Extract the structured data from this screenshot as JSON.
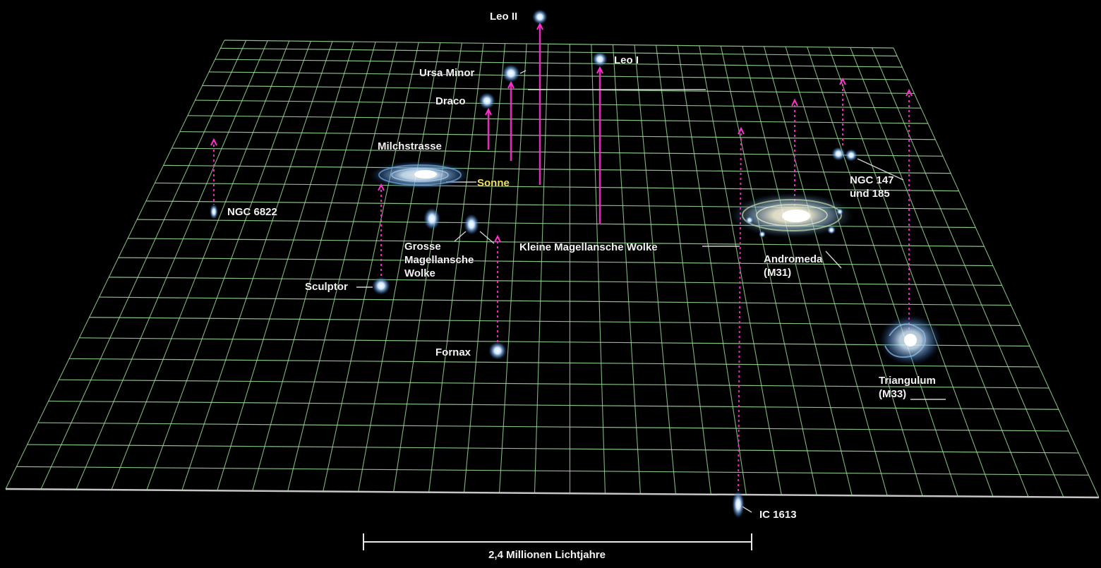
{
  "objects": {
    "leo_ii": {
      "label": "Leo II"
    },
    "leo_i": {
      "label": "Leo I"
    },
    "ursa_minor": {
      "label": "Ursa Minor"
    },
    "draco": {
      "label": "Draco"
    },
    "milchstrasse": {
      "label": "Milchstrasse"
    },
    "sonne": {
      "label": "Sonne"
    },
    "ngc_6822": {
      "label": "NGC 6822"
    },
    "grosse_magellansche_wolke": {
      "label": "Grosse\nMagellansche\nWolke"
    },
    "kleine_magellansche_wolke": {
      "label": "Kleine Magellansche Wolke"
    },
    "sculptor": {
      "label": "Sculptor"
    },
    "fornax": {
      "label": "Fornax"
    },
    "ngc_147_185": {
      "label": "NGC 147\nund 185"
    },
    "andromeda": {
      "label": "Andromeda\n(M31)"
    },
    "triangulum": {
      "label": "Triangulum\n(M33)"
    },
    "ic_1613": {
      "label": "IC 1613"
    }
  },
  "scale_bar": {
    "label": "2,4 Millionen Lichtjahre"
  },
  "colors": {
    "background": "#000000",
    "grid": "#9ee39a",
    "drop_line": "#ff2fd0",
    "label": "#f2f2f2",
    "sun_label": "#f0e060"
  }
}
